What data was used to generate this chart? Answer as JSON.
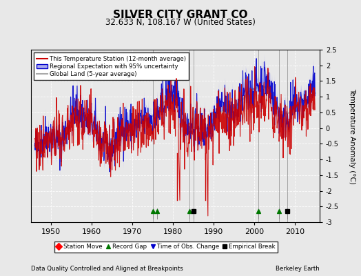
{
  "title": "SILVER CITY GRANT CO",
  "subtitle": "32.633 N, 108.167 W (United States)",
  "ylabel": "Temperature Anomaly (°C)",
  "footer_left": "Data Quality Controlled and Aligned at Breakpoints",
  "footer_right": "Berkeley Earth",
  "xlim": [
    1945,
    2016
  ],
  "ylim": [
    -3.0,
    2.5
  ],
  "yticks": [
    -3,
    -2.5,
    -2,
    -1.5,
    -1,
    -0.5,
    0,
    0.5,
    1,
    1.5,
    2,
    2.5
  ],
  "xticks": [
    1950,
    1960,
    1970,
    1980,
    1990,
    2000,
    2010
  ],
  "bg_color": "#e8e8e8",
  "plot_bg_color": "#e8e8e8",
  "station_color": "#cc0000",
  "regional_color": "#0000cc",
  "regional_fill_color": "#aaaaee",
  "global_color": "#aaaaaa",
  "record_gap_years": [
    1975,
    1976,
    1984,
    2001,
    2006
  ],
  "empirical_break_years": [
    1985,
    2008
  ],
  "station_move_years": [],
  "tobs_change_years": [],
  "red_vline_years": [
    1981,
    1988
  ],
  "gray_vline_years": [
    1975,
    1984,
    1985,
    2001,
    2006,
    2008
  ]
}
